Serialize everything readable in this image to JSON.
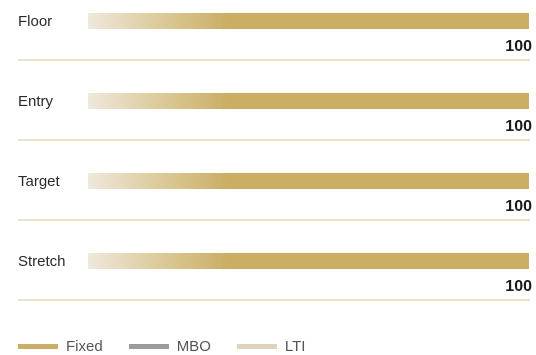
{
  "chart_data": {
    "type": "bar",
    "orientation": "horizontal",
    "stacked": true,
    "categories": [
      "Floor",
      "Entry",
      "Target",
      "Stretch"
    ],
    "series": [
      {
        "name": "Fixed",
        "values": [
          100,
          100,
          100,
          100
        ],
        "color": "#c9ae63"
      },
      {
        "name": "MBO",
        "values": [
          0,
          0,
          0,
          0
        ],
        "color": "#9a9a9f"
      },
      {
        "name": "LTI",
        "values": [
          0,
          0,
          0,
          0
        ],
        "color": "#ddd3b8"
      }
    ],
    "totals": [
      "100",
      "100",
      "100",
      "100"
    ],
    "xlim": [
      0,
      100
    ],
    "grid": false,
    "legend": "bottom-left",
    "bar_gradient_start": "#efe9dc",
    "separator_color": "#d8c48f"
  }
}
